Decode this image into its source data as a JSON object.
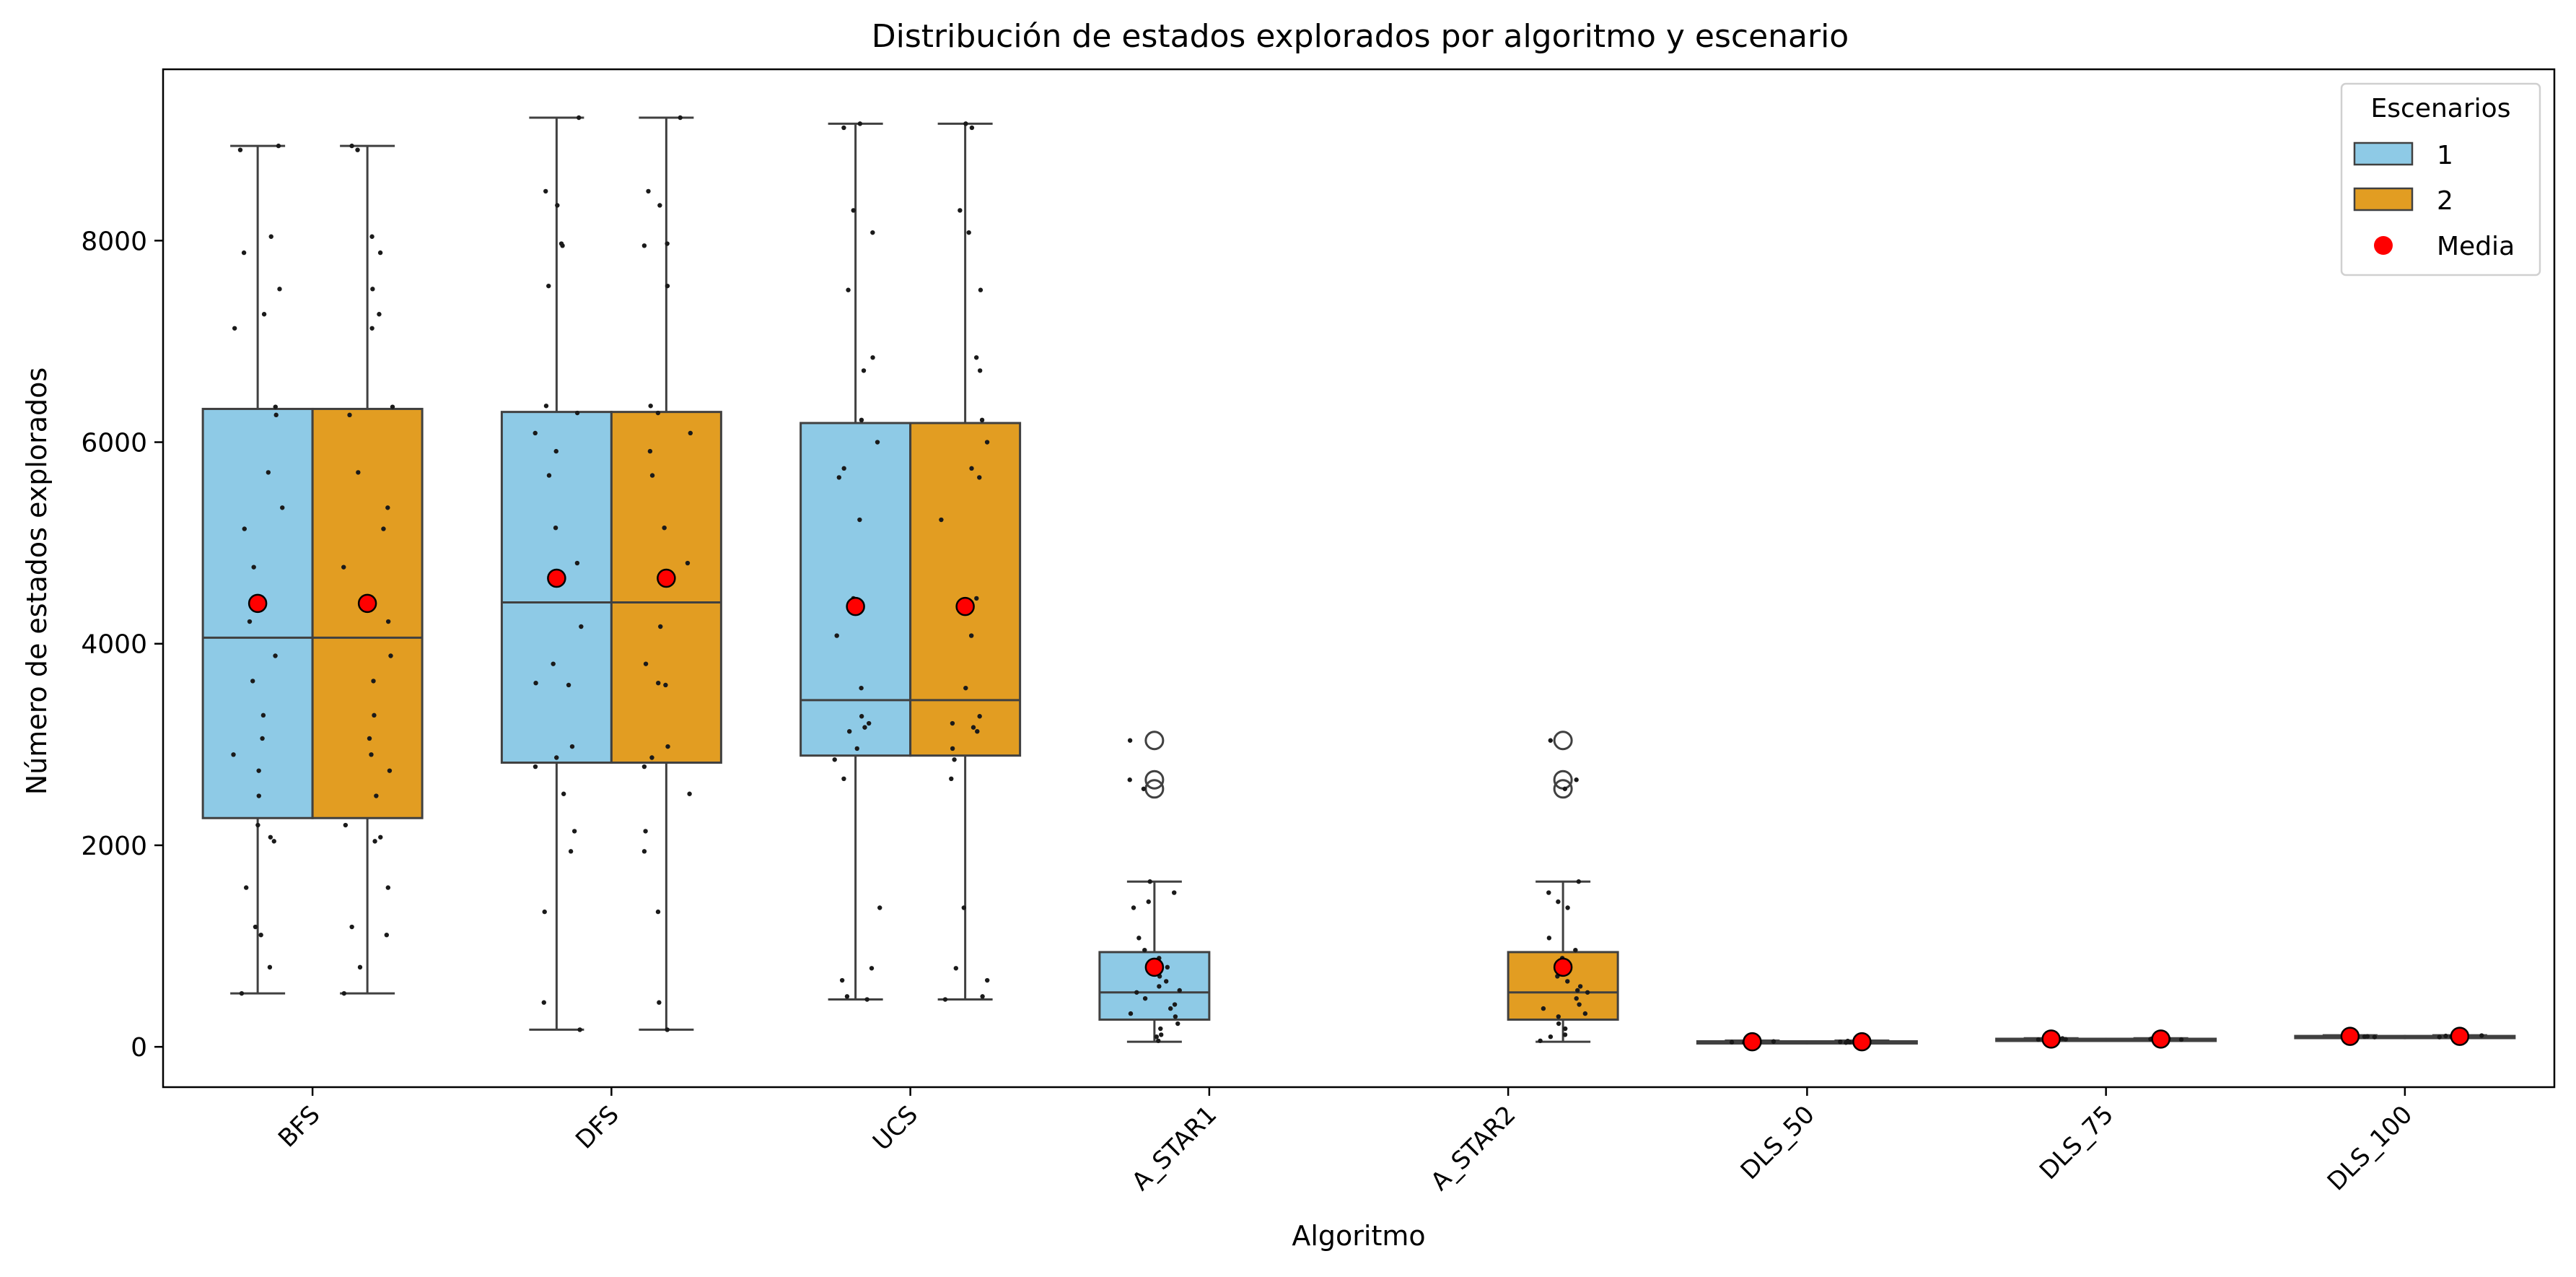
{
  "chart_data": {
    "type": "box",
    "title": "Distribución de estados explorados por algoritmo y escenario",
    "xlabel": "Algoritmo",
    "ylabel": "Número de estados explorados",
    "categories": [
      "BFS",
      "DFS",
      "UCS",
      "A_STAR1",
      "A_STAR2",
      "DLS_50",
      "DLS_75",
      "DLS_100"
    ],
    "ylim": [
      -400,
      9700
    ],
    "yticks": [
      0,
      2000,
      4000,
      6000,
      8000
    ],
    "grid": false,
    "legend": {
      "title": "Escenarios",
      "placement": "top-right",
      "entries": [
        {
          "label": "1",
          "kind": "patch",
          "color": "#8ecae6"
        },
        {
          "label": "2",
          "kind": "patch",
          "color": "#e29d22"
        },
        {
          "label": "Media",
          "kind": "marker",
          "color": "#ff0000"
        }
      ]
    },
    "colors": {
      "scenario_1": "#8ecae6",
      "scenario_2": "#e29d22",
      "box_edge": "#404040",
      "mean_marker": "#ff0000",
      "points": "#1a1a1a"
    },
    "series": [
      {
        "name": "1",
        "boxes": [
          {
            "category": "BFS",
            "whisker_low": 530,
            "q1": 2270,
            "median": 4060,
            "q3": 6330,
            "whisker_high": 8940,
            "mean": 4400,
            "outliers": [],
            "points": [
              530,
              790,
              1110,
              1190,
              1580,
              2040,
              2080,
              2200,
              2490,
              2740,
              2900,
              3060,
              3290,
              3630,
              3880,
              4220,
              4760,
              5140,
              5350,
              5700,
              6270,
              6350,
              7130,
              7270,
              7520,
              7880,
              8040,
              8900,
              8940
            ]
          },
          {
            "category": "DFS",
            "whisker_low": 170,
            "q1": 2820,
            "median": 4410,
            "q3": 6300,
            "whisker_high": 9220,
            "mean": 4650,
            "outliers": [],
            "points": [
              170,
              440,
              1340,
              1940,
              2140,
              2510,
              2780,
              2870,
              2980,
              3590,
              3610,
              3800,
              4170,
              4800,
              5150,
              5670,
              5910,
              6090,
              6290,
              6360,
              7550,
              7950,
              7970,
              8350,
              8490,
              9220
            ]
          },
          {
            "category": "UCS",
            "whisker_low": 470,
            "q1": 2890,
            "median": 3440,
            "q3": 6190,
            "whisker_high": 9160,
            "mean": 4370,
            "outliers": [],
            "points": [
              470,
              500,
              660,
              780,
              1380,
              2660,
              2850,
              2960,
              3130,
              3170,
              3210,
              3280,
              3560,
              4080,
              4450,
              5230,
              5650,
              5740,
              6000,
              6220,
              6710,
              6840,
              7510,
              8080,
              8300,
              9120,
              9160
            ]
          },
          {
            "category": "A_STAR1",
            "whisker_low": 50,
            "q1": 270,
            "median": 540,
            "q3": 940,
            "whisker_high": 1640,
            "mean": 790,
            "outliers": [
              2560,
              2650,
              3040
            ],
            "points": [
              60,
              100,
              120,
              180,
              230,
              300,
              330,
              380,
              420,
              480,
              540,
              560,
              600,
              650,
              700,
              790,
              880,
              960,
              1080,
              1380,
              1440,
              1530,
              1640,
              2560,
              2650,
              3040
            ]
          },
          {
            "category": "DLS_50",
            "whisker_low": 40,
            "q1": 48,
            "median": 50,
            "q3": 55,
            "whisker_high": 62,
            "mean": 50,
            "outliers": [],
            "points": [
              42,
              46,
              50,
              53,
              58
            ]
          },
          {
            "category": "DLS_75",
            "whisker_low": 70,
            "q1": 74,
            "median": 76,
            "q3": 80,
            "whisker_high": 85,
            "mean": 77,
            "outliers": [],
            "points": [
              72,
              75,
              77,
              80,
              83
            ]
          },
          {
            "category": "DLS_100",
            "whisker_low": 95,
            "q1": 100,
            "median": 103,
            "q3": 108,
            "whisker_high": 115,
            "mean": 104,
            "outliers": [],
            "points": [
              97,
              101,
              104,
              108,
              112
            ]
          }
        ]
      },
      {
        "name": "2",
        "boxes": [
          {
            "category": "BFS",
            "whisker_low": 530,
            "q1": 2270,
            "median": 4060,
            "q3": 6330,
            "whisker_high": 8940,
            "mean": 4400,
            "outliers": [],
            "points": [
              530,
              790,
              1110,
              1190,
              1580,
              2040,
              2080,
              2200,
              2490,
              2740,
              2900,
              3060,
              3290,
              3630,
              3880,
              4220,
              4760,
              5140,
              5350,
              5700,
              6270,
              6350,
              7130,
              7270,
              7520,
              7880,
              8040,
              8900,
              8940
            ]
          },
          {
            "category": "DFS",
            "whisker_low": 170,
            "q1": 2820,
            "median": 4410,
            "q3": 6300,
            "whisker_high": 9220,
            "mean": 4650,
            "outliers": [],
            "points": [
              170,
              440,
              1340,
              1940,
              2140,
              2510,
              2780,
              2870,
              2980,
              3590,
              3610,
              3800,
              4170,
              4800,
              5150,
              5670,
              5910,
              6090,
              6290,
              6360,
              7550,
              7950,
              7970,
              8350,
              8490,
              9220
            ]
          },
          {
            "category": "UCS",
            "whisker_low": 470,
            "q1": 2890,
            "median": 3440,
            "q3": 6190,
            "whisker_high": 9160,
            "mean": 4370,
            "outliers": [],
            "points": [
              470,
              500,
              660,
              780,
              1380,
              2660,
              2850,
              2960,
              3130,
              3170,
              3210,
              3280,
              3560,
              4080,
              4450,
              5230,
              5650,
              5740,
              6000,
              6220,
              6710,
              6840,
              7510,
              8080,
              8300,
              9120,
              9160
            ]
          },
          {
            "category": "A_STAR2",
            "whisker_low": 50,
            "q1": 270,
            "median": 540,
            "q3": 940,
            "whisker_high": 1640,
            "mean": 790,
            "outliers": [
              2560,
              2650,
              3040
            ],
            "points": [
              60,
              100,
              120,
              180,
              230,
              300,
              330,
              380,
              420,
              480,
              540,
              560,
              600,
              650,
              700,
              790,
              880,
              960,
              1080,
              1380,
              1440,
              1530,
              1640,
              2560,
              2650,
              3040
            ]
          },
          {
            "category": "DLS_50",
            "whisker_low": 40,
            "q1": 48,
            "median": 50,
            "q3": 55,
            "whisker_high": 62,
            "mean": 50,
            "outliers": [],
            "points": [
              42,
              46,
              50,
              53,
              58
            ]
          },
          {
            "category": "DLS_75",
            "whisker_low": 70,
            "q1": 74,
            "median": 76,
            "q3": 80,
            "whisker_high": 85,
            "mean": 77,
            "outliers": [],
            "points": [
              72,
              75,
              77,
              80,
              83
            ]
          },
          {
            "category": "DLS_100",
            "whisker_low": 95,
            "q1": 100,
            "median": 103,
            "q3": 108,
            "whisker_high": 115,
            "mean": 104,
            "outliers": [],
            "points": [
              97,
              101,
              104,
              108,
              112
            ]
          }
        ]
      }
    ]
  }
}
